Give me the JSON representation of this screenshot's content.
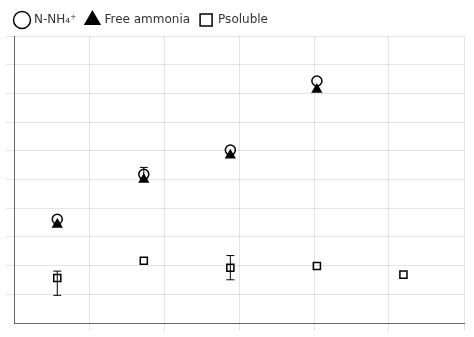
{
  "chart_data": {
    "type": "scatter",
    "series": [
      {
        "name": "N-NH₄⁺",
        "color": "black",
        "marker": "circle-open",
        "x": [
          1,
          2,
          3,
          4
        ],
        "values": [
          5.5,
          6.8,
          7.5,
          9.5
        ],
        "yerr_lo": [
          null,
          0.2,
          null,
          null
        ],
        "yerr_hi": [
          null,
          0.2,
          null,
          null
        ]
      },
      {
        "name": "Free ammonia",
        "color": "black",
        "marker": "triangle",
        "x": [
          1,
          2,
          3,
          4
        ],
        "values": [
          5.35,
          6.65,
          7.35,
          9.25
        ],
        "yerr_lo": [
          null,
          null,
          null,
          null
        ],
        "yerr_hi": [
          null,
          null,
          null,
          null
        ]
      },
      {
        "name": "Psoluble",
        "color": "black",
        "marker": "square-open",
        "x": [
          1,
          2,
          3,
          4,
          5
        ],
        "values": [
          3.8,
          4.3,
          4.1,
          4.15,
          3.9
        ],
        "yerr_lo": [
          0.5,
          null,
          0.35,
          null,
          null
        ],
        "yerr_hi": [
          0.2,
          null,
          0.35,
          null,
          null
        ]
      }
    ],
    "xlim": [
      0.5,
      5.7
    ],
    "ylim": [
      2.5,
      10.8
    ],
    "xticks": [
      1.3666666666666667,
      2.2333333333333334,
      3.1,
      3.966666666666667,
      4.833333333333333,
      5.7
    ],
    "yticks": [
      3.33,
      4.16,
      4.99,
      5.82,
      6.65,
      7.48,
      8.31,
      9.14,
      9.97,
      10.8
    ],
    "grid": true,
    "tick_labels": false,
    "legend": "upper left"
  }
}
